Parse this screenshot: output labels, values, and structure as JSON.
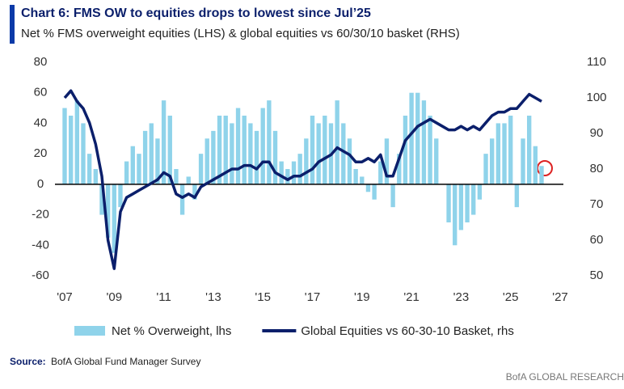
{
  "chart_data": {
    "type": "combo",
    "title": "Chart 6: FMS OW to equities drops to lowest since Jul’25",
    "subtitle": "Net % FMS overweight equities (LHS) & global equities vs 60/30/10 basket (RHS)",
    "source_label": "Source:",
    "source_text": "BofA Global Fund Manager Survey",
    "branding": "BofA GLOBAL RESEARCH",
    "x": [
      2007,
      2007.25,
      2007.5,
      2007.75,
      2008,
      2008.25,
      2008.5,
      2008.75,
      2009,
      2009.25,
      2009.5,
      2009.75,
      2010,
      2010.25,
      2010.5,
      2010.75,
      2011,
      2011.25,
      2011.5,
      2011.75,
      2012,
      2012.25,
      2012.5,
      2012.75,
      2013,
      2013.25,
      2013.5,
      2013.75,
      2014,
      2014.25,
      2014.5,
      2014.75,
      2015,
      2015.25,
      2015.5,
      2015.75,
      2016,
      2016.25,
      2016.5,
      2016.75,
      2017,
      2017.25,
      2017.5,
      2017.75,
      2018,
      2018.25,
      2018.5,
      2018.75,
      2019,
      2019.25,
      2019.5,
      2019.75,
      2020,
      2020.25,
      2020.5,
      2020.75,
      2021,
      2021.25,
      2021.5,
      2021.75,
      2022,
      2022.25,
      2022.5,
      2022.75,
      2023,
      2023.25,
      2023.5,
      2023.75,
      2024,
      2024.25,
      2024.5,
      2024.75,
      2025,
      2025.25,
      2025.5,
      2025.75,
      2026,
      2026.25
    ],
    "xlim": [
      2007,
      2027
    ],
    "xticks": [
      {
        "value": 2007,
        "label": "'07"
      },
      {
        "value": 2009,
        "label": "'09"
      },
      {
        "value": 2011,
        "label": "'11"
      },
      {
        "value": 2013,
        "label": "'13"
      },
      {
        "value": 2015,
        "label": "'15"
      },
      {
        "value": 2017,
        "label": "'17"
      },
      {
        "value": 2019,
        "label": "'19"
      },
      {
        "value": 2021,
        "label": "'21"
      },
      {
        "value": 2023,
        "label": "'23"
      },
      {
        "value": 2025,
        "label": "'25"
      },
      {
        "value": 2027,
        "label": "'27"
      }
    ],
    "ylim": [
      -60,
      80
    ],
    "yticks": [
      -60,
      -40,
      -20,
      0,
      20,
      40,
      60,
      80
    ],
    "y2lim": [
      50,
      110
    ],
    "y2ticks": [
      50,
      60,
      70,
      80,
      90,
      100,
      110
    ],
    "series": [
      {
        "name": "Net % Overweight, lhs",
        "type": "bar",
        "color": "#8fd3ea",
        "values": [
          50,
          45,
          55,
          40,
          20,
          10,
          -20,
          -35,
          -45,
          -15,
          15,
          25,
          20,
          35,
          40,
          30,
          55,
          45,
          10,
          -20,
          5,
          -10,
          20,
          30,
          35,
          45,
          45,
          40,
          50,
          45,
          40,
          35,
          50,
          55,
          35,
          15,
          10,
          15,
          20,
          30,
          45,
          40,
          45,
          40,
          55,
          40,
          30,
          10,
          5,
          -5,
          -10,
          15,
          30,
          -15,
          20,
          45,
          60,
          60,
          55,
          45,
          30,
          0,
          -25,
          -40,
          -30,
          -25,
          -20,
          -10,
          20,
          30,
          40,
          40,
          45,
          -15,
          30,
          45,
          25,
          12
        ]
      },
      {
        "name": "Global Equities vs 60-30-10 Basket, rhs",
        "type": "line",
        "axis": "y2",
        "color": "#0b1f6b",
        "values": [
          100,
          102,
          99,
          97,
          93,
          87,
          78,
          60,
          52,
          68,
          72,
          73,
          74,
          75,
          76,
          77,
          79,
          78,
          73,
          72,
          73,
          72,
          75,
          76,
          77,
          78,
          79,
          80,
          80,
          81,
          81,
          80,
          82,
          82,
          79,
          78,
          77,
          78,
          78,
          79,
          80,
          82,
          83,
          84,
          86,
          85,
          84,
          82,
          82,
          83,
          82,
          84,
          78,
          78,
          83,
          88,
          90,
          92,
          93,
          94,
          93,
          92,
          91,
          91,
          92,
          91,
          92,
          91,
          93,
          95,
          96,
          96,
          97,
          97,
          99,
          101,
          100,
          99
        ]
      }
    ]
  }
}
